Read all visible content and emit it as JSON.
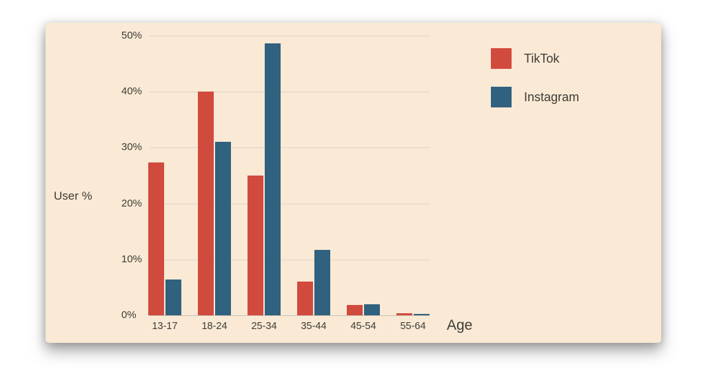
{
  "canvas": {
    "background": "#ffffff"
  },
  "card": {
    "background": "#F9E9D5"
  },
  "text_color": "#3E3C36",
  "chart_data": {
    "type": "bar",
    "title": "",
    "xlabel": "Age",
    "ylabel": "User %",
    "categories": [
      "13-17",
      "18-24",
      "25-34",
      "35-44",
      "45-54",
      "55-64"
    ],
    "series": [
      {
        "name": "TikTok",
        "color": "#D14A3E",
        "values": [
          27.4,
          40.0,
          25.0,
          6.0,
          1.8,
          0.4
        ]
      },
      {
        "name": "Instagram",
        "color": "#30617F",
        "values": [
          6.4,
          31.0,
          48.7,
          11.7,
          2.0,
          0.3
        ]
      }
    ],
    "ylim": [
      0,
      50
    ],
    "yticks": [
      0,
      10,
      20,
      30,
      40,
      50
    ],
    "ytick_labels": [
      "0%",
      "10%",
      "20%",
      "30%",
      "40%",
      "50%"
    ],
    "grid": true,
    "gridline_color": "#DED5C6",
    "baseline_color": "#CBC2B2",
    "legend_position": "top-right"
  }
}
